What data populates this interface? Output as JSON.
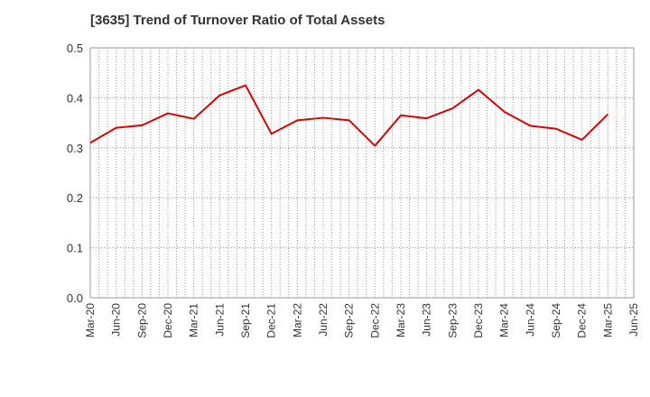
{
  "chart_data": {
    "type": "line",
    "title": "[3635]  Trend of Turnover Ratio of Total Assets",
    "xlabel": "",
    "ylabel": "",
    "ylim": [
      0,
      0.5
    ],
    "yticks": [
      "0.0",
      "0.1",
      "0.2",
      "0.3",
      "0.4",
      "0.5"
    ],
    "x_tick_labels": [
      "Mar-20",
      "Jun-20",
      "Sep-20",
      "Dec-20",
      "Mar-21",
      "Jun-21",
      "Sep-21",
      "Dec-21",
      "Mar-22",
      "Jun-22",
      "Sep-22",
      "Dec-22",
      "Mar-23",
      "Jun-23",
      "Sep-23",
      "Dec-23",
      "Mar-24",
      "Jun-24",
      "Sep-24",
      "Dec-24",
      "Mar-25",
      "Jun-25"
    ],
    "grid": true,
    "series": [
      {
        "color": "#e00000",
        "x": [
          "Mar-20",
          "Jun-20",
          "Sep-20",
          "Dec-20",
          "Mar-21",
          "Jun-21",
          "Sep-21",
          "Dec-21",
          "Mar-22",
          "Jun-22",
          "Sep-22",
          "Dec-22",
          "Mar-23",
          "Jun-23",
          "Sep-23",
          "Dec-23",
          "Mar-24",
          "Jun-24",
          "Sep-24",
          "Dec-24",
          "Mar-25"
        ],
        "values": [
          0.31,
          0.34,
          0.345,
          0.369,
          0.358,
          0.405,
          0.425,
          0.328,
          0.355,
          0.36,
          0.355,
          0.304,
          0.365,
          0.359,
          0.379,
          0.416,
          0.372,
          0.344,
          0.338,
          0.316,
          0.367
        ]
      }
    ]
  }
}
